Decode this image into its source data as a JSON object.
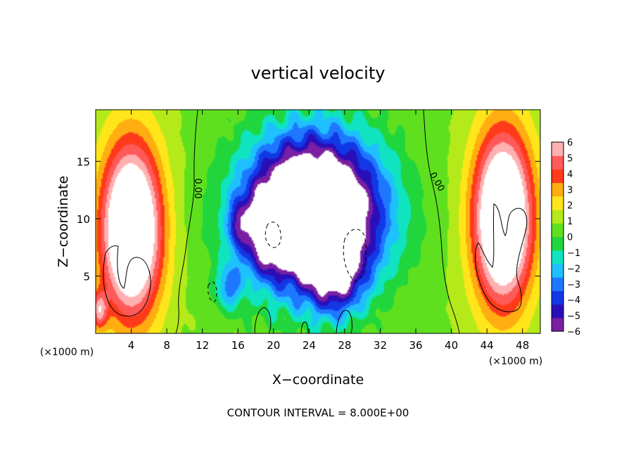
{
  "chart_data": {
    "type": "heatmap",
    "title": "vertical velocity",
    "xlabel": "X−coordinate",
    "ylabel": "Z−coordinate",
    "x_unit_left": "(×1000 m)",
    "x_unit_right": "(×1000 m)",
    "footer": "CONTOUR INTERVAL = 8.000E+00",
    "xlim": [
      0,
      50
    ],
    "ylim": [
      0,
      19.5
    ],
    "x_ticks": [
      4,
      8,
      12,
      16,
      20,
      24,
      28,
      32,
      36,
      40,
      44,
      48
    ],
    "x_tick_labels": [
      "4",
      "8",
      "12",
      "16",
      "20",
      "24",
      "28",
      "32",
      "36",
      "40",
      "44",
      "48"
    ],
    "y_ticks": [
      5,
      10,
      15
    ],
    "y_tick_labels": [
      "5",
      "10",
      "15"
    ],
    "colorbar": {
      "min": -6,
      "max": 6,
      "ticks": [
        6,
        5,
        4,
        3,
        2,
        1,
        0,
        -1,
        -2,
        -3,
        -4,
        -5,
        -6
      ],
      "tick_labels": [
        "6",
        "5",
        "4",
        "3",
        "2",
        "1",
        "0",
        "−1",
        "−2",
        "−3",
        "−4",
        "−5",
        "−6"
      ],
      "colors": [
        "#7a1fa2",
        "#2a0fb8",
        "#1238e6",
        "#1e78ff",
        "#1fc0ff",
        "#10e3c0",
        "#20d63c",
        "#5fe01f",
        "#b4ea1a",
        "#ffe61a",
        "#ffad10",
        "#ff3a1a",
        "#ff5a5a",
        "#ffb0b0"
      ],
      "saturation_color": "#ffffff"
    },
    "contour_labels": [
      "0.00",
      "0.00"
    ],
    "features": [
      {
        "kind": "updraft",
        "x": 4,
        "z": 9,
        "sx": 3.4,
        "sz": 7.5,
        "value": 9.5
      },
      {
        "kind": "updraft",
        "x": 45.8,
        "z": 10,
        "sx": 3.3,
        "sz": 7.5,
        "value": 9.5
      },
      {
        "kind": "updraft",
        "x": 0.4,
        "z": 2,
        "sx": 0.9,
        "sz": 1.6,
        "value": 4
      },
      {
        "kind": "downdraft",
        "x": 24.5,
        "z": 10.5,
        "sx": 7.5,
        "sz": 6.5,
        "value": -13
      },
      {
        "kind": "downdraft",
        "x": 27,
        "z": 5,
        "sx": 3,
        "sz": 3.5,
        "value": -4
      },
      {
        "kind": "downdraft",
        "x": 19.5,
        "z": 9,
        "sx": 2.2,
        "sz": 3,
        "value": -5
      },
      {
        "kind": "downdraft",
        "x": 15,
        "z": 4,
        "sx": 1.5,
        "sz": 2,
        "value": -3
      },
      {
        "kind": "downdraft",
        "x": 16,
        "z": 9.5,
        "sx": 1,
        "sz": 2,
        "value": -3
      }
    ]
  }
}
